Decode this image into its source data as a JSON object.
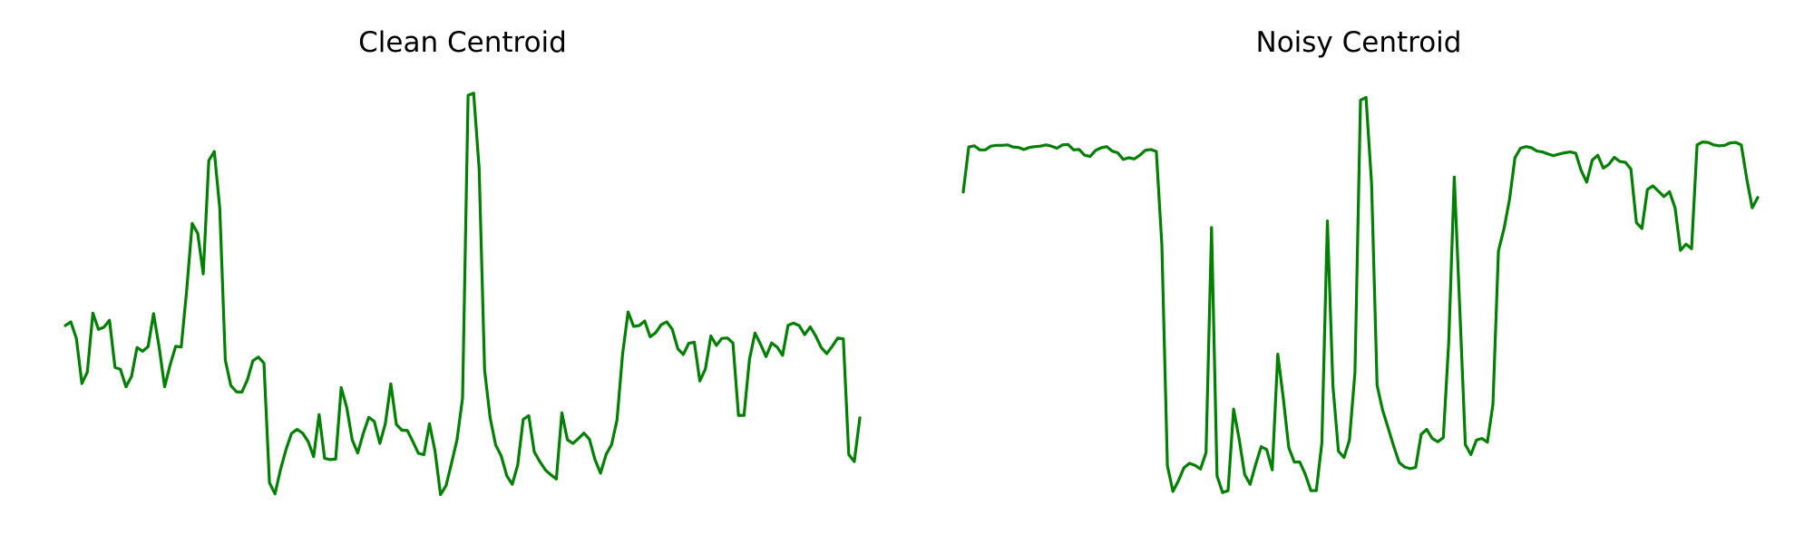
{
  "chart_data": [
    {
      "type": "line",
      "title": "Clean Centroid",
      "color": "#008000",
      "axes": "off",
      "grid": false,
      "series": [
        {
          "values": [
            0.423,
            0.432,
            0.392,
            0.283,
            0.311,
            0.453,
            0.414,
            0.419,
            0.436,
            0.322,
            0.317,
            0.275,
            0.3,
            0.37,
            0.361,
            0.372,
            0.452,
            0.372,
            0.275,
            0.328,
            0.373,
            0.371,
            0.508,
            0.67,
            0.646,
            0.548,
            0.822,
            0.844,
            0.707,
            0.34,
            0.278,
            0.263,
            0.262,
            0.292,
            0.338,
            0.347,
            0.332,
            0.043,
            0.016,
            0.075,
            0.123,
            0.162,
            0.172,
            0.163,
            0.143,
            0.106,
            0.208,
            0.102,
            0.099,
            0.1,
            0.273,
            0.225,
            0.147,
            0.115,
            0.162,
            0.201,
            0.191,
            0.138,
            0.185,
            0.282,
            0.184,
            0.17,
            0.169,
            0.142,
            0.114,
            0.111,
            0.186,
            0.12,
            0.014,
            0.036,
            0.09,
            0.147,
            0.248,
            0.98,
            0.985,
            0.802,
            0.315,
            0.2,
            0.134,
            0.108,
            0.06,
            0.039,
            0.086,
            0.196,
            0.205,
            0.117,
            0.094,
            0.074,
            0.062,
            0.052,
            0.212,
            0.147,
            0.138,
            0.15,
            0.163,
            0.148,
            0.099,
            0.066,
            0.111,
            0.135,
            0.195,
            0.354,
            0.456,
            0.421,
            0.423,
            0.434,
            0.396,
            0.406,
            0.425,
            0.432,
            0.414,
            0.367,
            0.353,
            0.38,
            0.383,
            0.289,
            0.318,
            0.398,
            0.375,
            0.392,
            0.393,
            0.381,
            0.206,
            0.206,
            0.341,
            0.405,
            0.378,
            0.348,
            0.381,
            0.371,
            0.351,
            0.424,
            0.429,
            0.423,
            0.401,
            0.42,
            0.398,
            0.37,
            0.355,
            0.373,
            0.393,
            0.391,
            0.111,
            0.094,
            0.2
          ]
        }
      ]
    },
    {
      "type": "line",
      "title": "Noisy Centroid",
      "color": "#008000",
      "axes": "off",
      "grid": false,
      "series": [
        {
          "values": [
            0.746,
            0.855,
            0.858,
            0.848,
            0.848,
            0.857,
            0.859,
            0.859,
            0.86,
            0.855,
            0.854,
            0.849,
            0.854,
            0.856,
            0.857,
            0.86,
            0.857,
            0.852,
            0.86,
            0.861,
            0.848,
            0.849,
            0.835,
            0.832,
            0.847,
            0.853,
            0.856,
            0.845,
            0.841,
            0.825,
            0.829,
            0.826,
            0.835,
            0.847,
            0.849,
            0.844,
            0.618,
            0.084,
            0.022,
            0.048,
            0.079,
            0.09,
            0.085,
            0.076,
            0.116,
            0.66,
            0.06,
            0.019,
            0.024,
            0.221,
            0.149,
            0.063,
            0.039,
            0.087,
            0.13,
            0.123,
            0.074,
            0.354,
            0.249,
            0.128,
            0.093,
            0.093,
            0.063,
            0.024,
            0.024,
            0.139,
            0.676,
            0.277,
            0.119,
            0.104,
            0.146,
            0.31,
            0.968,
            0.975,
            0.767,
            0.279,
            0.219,
            0.176,
            0.132,
            0.092,
            0.081,
            0.077,
            0.08,
            0.16,
            0.172,
            0.15,
            0.142,
            0.152,
            0.384,
            0.782,
            0.462,
            0.135,
            0.111,
            0.146,
            0.15,
            0.141,
            0.232,
            0.604,
            0.657,
            0.728,
            0.829,
            0.852,
            0.856,
            0.853,
            0.845,
            0.843,
            0.838,
            0.834,
            0.838,
            0.841,
            0.843,
            0.84,
            0.798,
            0.77,
            0.823,
            0.835,
            0.804,
            0.813,
            0.83,
            0.82,
            0.818,
            0.802,
            0.672,
            0.658,
            0.752,
            0.761,
            0.748,
            0.735,
            0.747,
            0.708,
            0.605,
            0.62,
            0.609,
            0.86,
            0.867,
            0.866,
            0.86,
            0.858,
            0.859,
            0.865,
            0.866,
            0.86,
            0.779,
            0.708,
            0.733
          ]
        }
      ]
    }
  ]
}
